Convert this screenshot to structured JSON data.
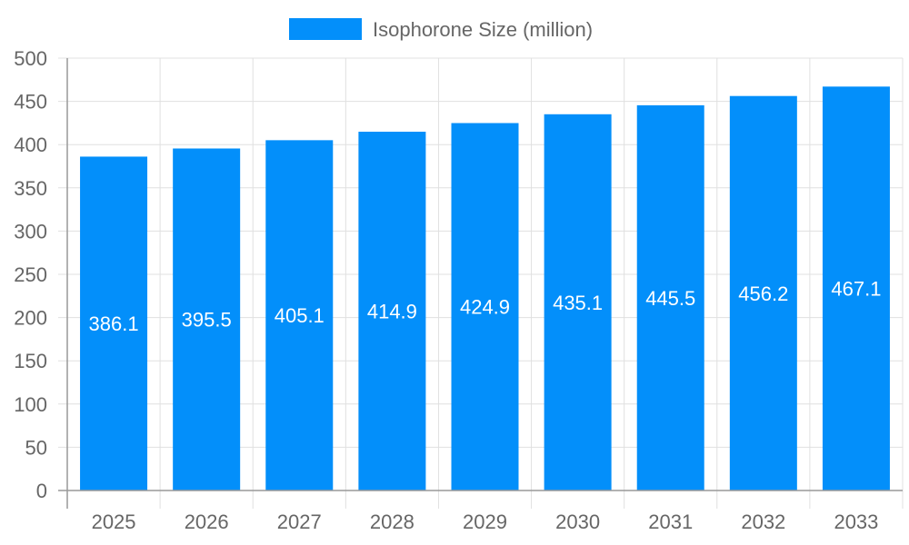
{
  "chart_data": {
    "type": "bar",
    "title": "",
    "xlabel": "",
    "ylabel": "",
    "categories": [
      "2025",
      "2026",
      "2027",
      "2028",
      "2029",
      "2030",
      "2031",
      "2032",
      "2033"
    ],
    "series": [
      {
        "name": "Isophorone Size (million)",
        "values": [
          386.1,
          395.5,
          405.1,
          414.9,
          424.9,
          435.1,
          445.5,
          456.2,
          467.1
        ],
        "color": "#038ffa"
      }
    ],
    "ylim": [
      0,
      500
    ],
    "yticks": [
      0,
      50,
      100,
      150,
      200,
      250,
      300,
      350,
      400,
      450,
      500
    ],
    "grid": true,
    "legend": "top-center",
    "data_labels": true
  }
}
